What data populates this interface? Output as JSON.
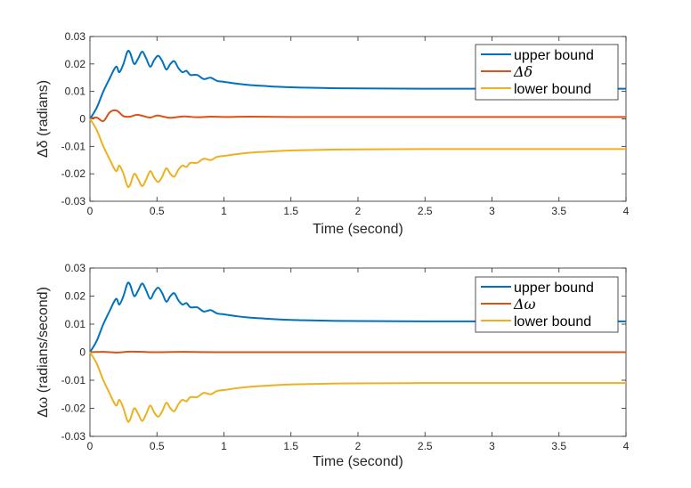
{
  "chart_data": [
    {
      "type": "line",
      "ylabel": "Δδ (radians)",
      "xlabel": "Time (second)",
      "xlim": [
        0,
        4
      ],
      "ylim": [
        -0.03,
        0.03
      ],
      "xticks": [
        "0",
        "0.5",
        "1",
        "1.5",
        "2",
        "2.5",
        "3",
        "3.5",
        "4"
      ],
      "yticks": [
        "-0.03",
        "-0.02",
        "-0.01",
        "0",
        "0.01",
        "0.02",
        "0.03"
      ],
      "legend_position": "top-right",
      "series": [
        {
          "name": "upper bound",
          "color": "#0072BD",
          "x": [
            0,
            0.05,
            0.1,
            0.15,
            0.18,
            0.2,
            0.22,
            0.25,
            0.28,
            0.3,
            0.33,
            0.36,
            0.39,
            0.42,
            0.45,
            0.48,
            0.51,
            0.54,
            0.57,
            0.6,
            0.63,
            0.66,
            0.69,
            0.72,
            0.75,
            0.8,
            0.85,
            0.9,
            0.95,
            1.0,
            1.1,
            1.2,
            1.3,
            1.4,
            1.5,
            1.6,
            1.8,
            2.0,
            2.5,
            3.0,
            3.5,
            4.0
          ],
          "y": [
            0,
            0.004,
            0.01,
            0.015,
            0.018,
            0.019,
            0.017,
            0.02,
            0.0245,
            0.024,
            0.02,
            0.022,
            0.0245,
            0.022,
            0.019,
            0.0215,
            0.023,
            0.021,
            0.018,
            0.02,
            0.021,
            0.0185,
            0.017,
            0.0175,
            0.016,
            0.016,
            0.0145,
            0.015,
            0.0138,
            0.0135,
            0.0128,
            0.0123,
            0.012,
            0.0117,
            0.0115,
            0.0114,
            0.0112,
            0.0111,
            0.011,
            0.011,
            0.011,
            0.011
          ]
        },
        {
          "name": "Δδ",
          "color": "#D95319",
          "x": [
            0,
            0.05,
            0.1,
            0.15,
            0.2,
            0.25,
            0.3,
            0.35,
            0.4,
            0.45,
            0.5,
            0.55,
            0.6,
            0.7,
            0.8,
            0.9,
            1.0,
            1.2,
            1.5,
            2.0,
            3.0,
            4.0
          ],
          "y": [
            0,
            0.0005,
            -0.0008,
            0.0025,
            0.003,
            0.001,
            0.0008,
            0.0015,
            0.001,
            0.0005,
            0.0012,
            0.0008,
            0.0004,
            0.0009,
            0.0006,
            0.0008,
            0.0007,
            0.0008,
            0.0007,
            0.0007,
            0.0007,
            0.0007
          ]
        },
        {
          "name": "lower bound",
          "color": "#EDB120",
          "x": [
            0,
            0.05,
            0.1,
            0.15,
            0.18,
            0.2,
            0.22,
            0.25,
            0.28,
            0.3,
            0.33,
            0.36,
            0.39,
            0.42,
            0.45,
            0.48,
            0.51,
            0.54,
            0.57,
            0.6,
            0.63,
            0.66,
            0.69,
            0.72,
            0.75,
            0.8,
            0.85,
            0.9,
            0.95,
            1.0,
            1.1,
            1.2,
            1.3,
            1.4,
            1.5,
            1.6,
            1.8,
            2.0,
            2.5,
            3.0,
            3.5,
            4.0
          ],
          "y": [
            0,
            -0.004,
            -0.01,
            -0.015,
            -0.018,
            -0.019,
            -0.017,
            -0.02,
            -0.0245,
            -0.024,
            -0.02,
            -0.022,
            -0.0245,
            -0.022,
            -0.019,
            -0.0215,
            -0.023,
            -0.021,
            -0.018,
            -0.02,
            -0.021,
            -0.0185,
            -0.017,
            -0.0175,
            -0.016,
            -0.016,
            -0.0145,
            -0.015,
            -0.0138,
            -0.0135,
            -0.0128,
            -0.0123,
            -0.012,
            -0.0117,
            -0.0115,
            -0.0114,
            -0.0112,
            -0.0111,
            -0.011,
            -0.011,
            -0.011,
            -0.011
          ]
        }
      ]
    },
    {
      "type": "line",
      "ylabel": "Δω (radians/second)",
      "xlabel": "Time (second)",
      "xlim": [
        0,
        4
      ],
      "ylim": [
        -0.03,
        0.03
      ],
      "xticks": [
        "0",
        "0.5",
        "1",
        "1.5",
        "2",
        "2.5",
        "3",
        "3.5",
        "4"
      ],
      "yticks": [
        "-0.03",
        "-0.02",
        "-0.01",
        "0",
        "0.01",
        "0.02",
        "0.03"
      ],
      "legend_position": "top-right",
      "series": [
        {
          "name": "upper bound",
          "color": "#0072BD",
          "x": [
            0,
            0.05,
            0.1,
            0.15,
            0.18,
            0.2,
            0.22,
            0.25,
            0.28,
            0.3,
            0.33,
            0.36,
            0.39,
            0.42,
            0.45,
            0.48,
            0.51,
            0.54,
            0.57,
            0.6,
            0.63,
            0.66,
            0.69,
            0.72,
            0.75,
            0.8,
            0.85,
            0.9,
            0.95,
            1.0,
            1.1,
            1.2,
            1.3,
            1.4,
            1.5,
            1.6,
            1.8,
            2.0,
            2.5,
            3.0,
            3.5,
            4.0
          ],
          "y": [
            0,
            0.004,
            0.01,
            0.015,
            0.018,
            0.019,
            0.017,
            0.02,
            0.0245,
            0.024,
            0.02,
            0.022,
            0.0245,
            0.022,
            0.019,
            0.0215,
            0.023,
            0.021,
            0.018,
            0.02,
            0.021,
            0.0185,
            0.017,
            0.0175,
            0.016,
            0.016,
            0.0145,
            0.015,
            0.0138,
            0.0135,
            0.0128,
            0.0123,
            0.012,
            0.0117,
            0.0115,
            0.0114,
            0.0112,
            0.0111,
            0.011,
            0.011,
            0.011,
            0.011
          ]
        },
        {
          "name": "Δω",
          "color": "#D95319",
          "x": [
            0,
            0.1,
            0.2,
            0.3,
            0.4,
            0.5,
            0.7,
            1.0,
            2.0,
            3.0,
            4.0
          ],
          "y": [
            0,
            0.0001,
            -0.0001,
            0.0002,
            0.0001,
            0.0,
            0.0001,
            0.0,
            0.0,
            0.0,
            0.0
          ]
        },
        {
          "name": "lower bound",
          "color": "#EDB120",
          "x": [
            0,
            0.05,
            0.1,
            0.15,
            0.18,
            0.2,
            0.22,
            0.25,
            0.28,
            0.3,
            0.33,
            0.36,
            0.39,
            0.42,
            0.45,
            0.48,
            0.51,
            0.54,
            0.57,
            0.6,
            0.63,
            0.66,
            0.69,
            0.72,
            0.75,
            0.8,
            0.85,
            0.9,
            0.95,
            1.0,
            1.1,
            1.2,
            1.3,
            1.4,
            1.5,
            1.6,
            1.8,
            2.0,
            2.5,
            3.0,
            3.5,
            4.0
          ],
          "y": [
            0,
            -0.004,
            -0.01,
            -0.015,
            -0.018,
            -0.019,
            -0.017,
            -0.02,
            -0.0245,
            -0.024,
            -0.02,
            -0.022,
            -0.0245,
            -0.022,
            -0.019,
            -0.0215,
            -0.023,
            -0.021,
            -0.018,
            -0.02,
            -0.021,
            -0.0185,
            -0.017,
            -0.0175,
            -0.016,
            -0.016,
            -0.0145,
            -0.015,
            -0.0138,
            -0.0135,
            -0.0128,
            -0.0123,
            -0.012,
            -0.0117,
            -0.0115,
            -0.0114,
            -0.0112,
            -0.0111,
            -0.011,
            -0.011,
            -0.011,
            -0.011
          ]
        }
      ]
    }
  ]
}
